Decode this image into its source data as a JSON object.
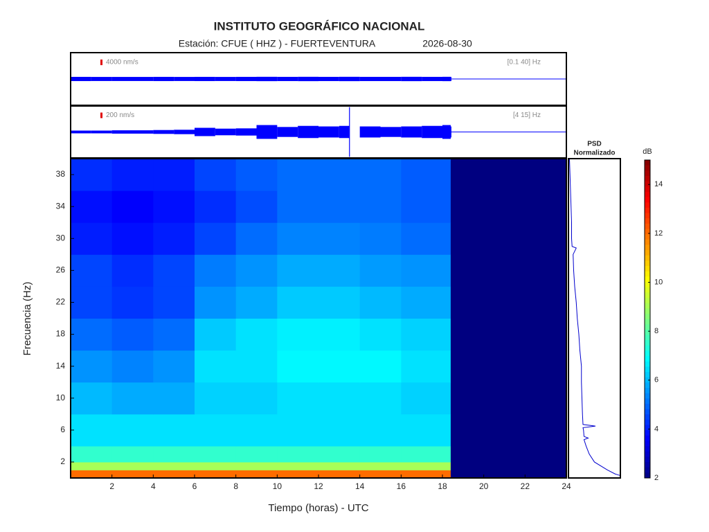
{
  "title": "INSTITUTO GEOGRÁFICO NACIONAL",
  "subtitle": {
    "station": "Estación:  CFUE ( HHZ ) - FUERTEVENTURA",
    "date": "2026-08-30"
  },
  "chart_data": [
    {
      "type": "seismogram",
      "color": "#0000ff",
      "xlim": [
        0,
        24
      ],
      "ylim": [
        -18750,
        18750
      ],
      "scale_value": 4000,
      "scale_label": "4000 nm/s",
      "filter_label": "[0.1 40] Hz",
      "x": [
        0,
        1,
        2,
        3,
        4,
        5,
        6,
        7,
        8,
        9,
        10,
        11,
        12,
        13,
        14,
        15,
        16,
        17,
        18,
        18.4
      ],
      "values": [
        1500,
        1450,
        1450,
        1450,
        1500,
        1450,
        1500,
        1450,
        1500,
        1550,
        1500,
        1550,
        1500,
        1550,
        1500,
        1500,
        1550,
        1500,
        1550,
        1500
      ]
    },
    {
      "type": "seismogram",
      "color": "#0000ff",
      "xlim": [
        0,
        24
      ],
      "ylim": [
        -940,
        940
      ],
      "scale_value": 200,
      "scale_label": "200 nm/s",
      "filter_label": "[4 15] Hz",
      "x": [
        0,
        1,
        2,
        3,
        4,
        5,
        6,
        7,
        8,
        9,
        10,
        11,
        12,
        13,
        13.5,
        14,
        15,
        16,
        17,
        18,
        18.4
      ],
      "values": [
        50,
        50,
        60,
        60,
        70,
        80,
        150,
        120,
        130,
        250,
        180,
        220,
        200,
        220,
        900,
        200,
        180,
        200,
        220,
        250,
        200
      ]
    },
    {
      "type": "spectrogram",
      "xlabel": "Tiempo (horas) - UTC",
      "ylabel": "Frecuencia  (Hz)",
      "xlim": [
        0,
        24
      ],
      "ylim": [
        0,
        40
      ],
      "xticks": [
        2,
        4,
        6,
        8,
        10,
        12,
        14,
        16,
        18,
        20,
        22,
        24
      ],
      "yticks": [
        2,
        6,
        10,
        14,
        18,
        22,
        26,
        30,
        34,
        38
      ],
      "x_edges": [
        0,
        2,
        4,
        6,
        8,
        10,
        12,
        14,
        16,
        18,
        18.4,
        24
      ],
      "y_edges": [
        0,
        1,
        2,
        4,
        8,
        12,
        16,
        20,
        24,
        28,
        32,
        36,
        40
      ],
      "values": [
        [
          12,
          12,
          12,
          12,
          12,
          12,
          12,
          12,
          12,
          12,
          2
        ],
        [
          9,
          9,
          9,
          9,
          9,
          9,
          9,
          9,
          9,
          9,
          2
        ],
        [
          7.5,
          7.5,
          7.5,
          7.5,
          7.5,
          7.5,
          7.5,
          7.5,
          7.5,
          7.5,
          2
        ],
        [
          6.5,
          6.5,
          6.5,
          6.5,
          6.5,
          6.5,
          6.5,
          6.5,
          6.5,
          6.5,
          2
        ],
        [
          6,
          5.8,
          5.8,
          6.3,
          6.3,
          6.5,
          6.5,
          6.5,
          6.3,
          6.3,
          2
        ],
        [
          5.5,
          5.3,
          5.5,
          6.5,
          6.5,
          6.8,
          6.8,
          6.8,
          6.5,
          6.5,
          2
        ],
        [
          5,
          4.8,
          5,
          6.2,
          6.5,
          6.7,
          6.7,
          6.5,
          6.3,
          6.3,
          2
        ],
        [
          4.5,
          4.3,
          4.5,
          5.5,
          5.8,
          6.2,
          6.2,
          6,
          5.8,
          5.8,
          2
        ],
        [
          4.5,
          4.2,
          4.5,
          5.2,
          5.5,
          5.8,
          5.8,
          5.6,
          5.5,
          5.5,
          2
        ],
        [
          4,
          3.8,
          4,
          4.5,
          5,
          5.3,
          5.3,
          5.2,
          5,
          5,
          2
        ],
        [
          3.8,
          3.6,
          3.8,
          4.2,
          4.6,
          5,
          5,
          5,
          4.8,
          4.8,
          2
        ],
        [
          4.2,
          4,
          4,
          4.5,
          4.8,
          5,
          5,
          5,
          4.8,
          4.8,
          2
        ]
      ],
      "colorbar": {
        "label": "dB",
        "lim": [
          2,
          15
        ],
        "ticks": [
          2,
          4,
          6,
          8,
          10,
          12,
          14
        ],
        "colormap": "jet"
      }
    },
    {
      "type": "psd",
      "title": "PSD",
      "subtitle": "Normalizado",
      "color": "#0000cd",
      "xlim": [
        0,
        1
      ],
      "ylim": [
        0,
        40
      ],
      "frequencies": [
        0.3,
        0.5,
        1,
        2,
        3,
        4,
        4.8,
        5,
        5.2,
        6,
        6.3,
        6.5,
        6.7,
        8,
        10,
        12,
        14,
        16,
        18,
        20,
        22,
        24,
        26,
        28,
        28.8,
        29,
        30,
        32,
        34,
        36,
        38,
        40
      ],
      "values": [
        1.0,
        0.9,
        0.75,
        0.5,
        0.4,
        0.34,
        0.3,
        0.38,
        0.3,
        0.29,
        0.28,
        0.52,
        0.28,
        0.27,
        0.26,
        0.25,
        0.25,
        0.22,
        0.2,
        0.17,
        0.15,
        0.12,
        0.1,
        0.09,
        0.15,
        0.07,
        0.06,
        0.06,
        0.05,
        0.04,
        0.03,
        0.02
      ]
    }
  ]
}
